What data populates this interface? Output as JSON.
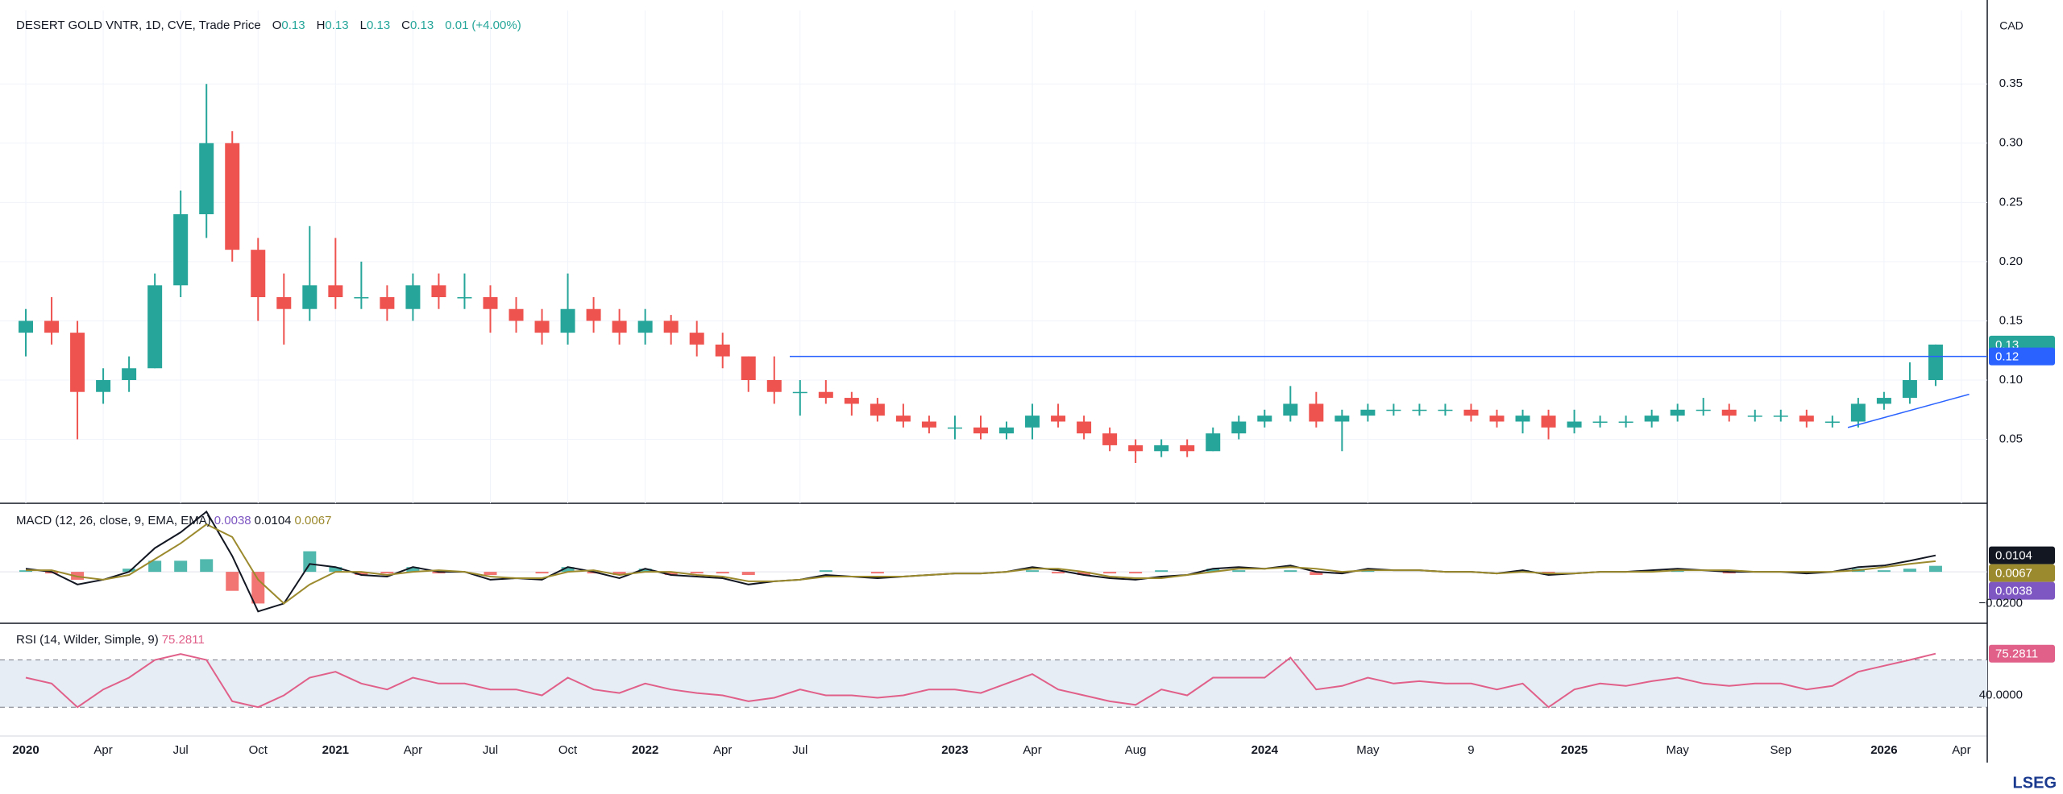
{
  "chart_data": [
    {
      "type": "candlestick",
      "title": "DESERT GOLD VNTR, 1D, CVE, Trade Price",
      "header": {
        "o_label": "O",
        "open": 0.13,
        "h_label": "H",
        "high": 0.13,
        "l_label": "L",
        "low": 0.13,
        "c_label": "C",
        "close": 0.13,
        "change": 0.01,
        "change_pct": "(+4.00%)"
      },
      "currency": "CAD",
      "up_color": "#26a69a",
      "down_color": "#ef5350",
      "x": [
        0,
        1,
        2,
        3,
        4,
        5,
        6,
        7,
        8,
        9,
        10,
        11,
        12,
        13,
        14,
        15,
        16,
        17,
        18,
        19,
        20,
        21,
        22,
        23,
        24,
        25,
        26,
        27,
        28,
        29,
        30,
        31,
        32,
        33,
        34,
        35,
        36,
        37,
        38,
        39,
        40,
        41,
        42,
        43,
        44,
        45,
        46,
        47,
        48,
        49,
        50,
        51,
        52,
        53,
        54,
        55,
        56,
        57,
        58,
        59,
        60,
        61,
        62,
        63,
        64,
        65,
        66,
        67,
        68,
        69,
        70,
        71,
        72,
        73,
        74
      ],
      "open": [
        0.14,
        0.15,
        0.14,
        0.09,
        0.1,
        0.11,
        0.18,
        0.24,
        0.3,
        0.21,
        0.17,
        0.16,
        0.18,
        0.17,
        0.17,
        0.16,
        0.18,
        0.17,
        0.17,
        0.16,
        0.15,
        0.14,
        0.16,
        0.15,
        0.14,
        0.15,
        0.14,
        0.13,
        0.12,
        0.1,
        0.09,
        0.09,
        0.085,
        0.08,
        0.07,
        0.065,
        0.06,
        0.06,
        0.055,
        0.06,
        0.07,
        0.065,
        0.055,
        0.045,
        0.04,
        0.045,
        0.04,
        0.055,
        0.065,
        0.07,
        0.08,
        0.065,
        0.07,
        0.075,
        0.075,
        0.075,
        0.075,
        0.07,
        0.065,
        0.07,
        0.06,
        0.065,
        0.065,
        0.065,
        0.07,
        0.075,
        0.075,
        0.07,
        0.07,
        0.07,
        0.065,
        0.065,
        0.08,
        0.085,
        0.1
      ],
      "high": [
        0.16,
        0.17,
        0.15,
        0.11,
        0.12,
        0.19,
        0.26,
        0.35,
        0.31,
        0.22,
        0.19,
        0.23,
        0.22,
        0.2,
        0.18,
        0.19,
        0.19,
        0.19,
        0.18,
        0.17,
        0.16,
        0.19,
        0.17,
        0.16,
        0.16,
        0.155,
        0.15,
        0.14,
        0.12,
        0.12,
        0.1,
        0.1,
        0.09,
        0.085,
        0.08,
        0.07,
        0.07,
        0.07,
        0.065,
        0.08,
        0.08,
        0.07,
        0.06,
        0.05,
        0.05,
        0.05,
        0.06,
        0.07,
        0.075,
        0.095,
        0.09,
        0.075,
        0.08,
        0.08,
        0.08,
        0.08,
        0.08,
        0.075,
        0.075,
        0.075,
        0.075,
        0.07,
        0.07,
        0.075,
        0.08,
        0.085,
        0.08,
        0.075,
        0.075,
        0.075,
        0.07,
        0.085,
        0.09,
        0.115,
        0.13
      ],
      "low": [
        0.12,
        0.13,
        0.05,
        0.08,
        0.09,
        0.11,
        0.17,
        0.22,
        0.2,
        0.15,
        0.13,
        0.15,
        0.16,
        0.16,
        0.15,
        0.15,
        0.16,
        0.16,
        0.14,
        0.14,
        0.13,
        0.13,
        0.14,
        0.13,
        0.13,
        0.13,
        0.12,
        0.11,
        0.09,
        0.08,
        0.07,
        0.08,
        0.07,
        0.065,
        0.06,
        0.055,
        0.05,
        0.05,
        0.05,
        0.05,
        0.06,
        0.05,
        0.04,
        0.03,
        0.035,
        0.035,
        0.04,
        0.05,
        0.06,
        0.065,
        0.06,
        0.04,
        0.065,
        0.07,
        0.07,
        0.07,
        0.065,
        0.06,
        0.055,
        0.05,
        0.055,
        0.06,
        0.06,
        0.06,
        0.065,
        0.07,
        0.065,
        0.065,
        0.065,
        0.06,
        0.06,
        0.06,
        0.075,
        0.08,
        0.095
      ],
      "close": [
        0.15,
        0.14,
        0.09,
        0.1,
        0.11,
        0.18,
        0.24,
        0.3,
        0.21,
        0.17,
        0.16,
        0.18,
        0.17,
        0.17,
        0.16,
        0.18,
        0.17,
        0.17,
        0.16,
        0.15,
        0.14,
        0.16,
        0.15,
        0.14,
        0.15,
        0.14,
        0.13,
        0.12,
        0.1,
        0.09,
        0.09,
        0.085,
        0.08,
        0.07,
        0.065,
        0.06,
        0.06,
        0.055,
        0.06,
        0.07,
        0.065,
        0.055,
        0.045,
        0.04,
        0.045,
        0.04,
        0.055,
        0.065,
        0.07,
        0.08,
        0.065,
        0.07,
        0.075,
        0.075,
        0.075,
        0.075,
        0.07,
        0.065,
        0.07,
        0.06,
        0.065,
        0.065,
        0.065,
        0.07,
        0.075,
        0.075,
        0.07,
        0.07,
        0.07,
        0.065,
        0.065,
        0.08,
        0.085,
        0.1,
        0.13
      ],
      "xlim": [
        -1,
        76
      ],
      "xticks": [
        {
          "value": 0,
          "label": "2020"
        },
        {
          "value": 3,
          "label": "Apr"
        },
        {
          "value": 6,
          "label": "Jul"
        },
        {
          "value": 9,
          "label": "Oct"
        },
        {
          "value": 12,
          "label": "2021"
        },
        {
          "value": 15,
          "label": "Apr"
        },
        {
          "value": 18,
          "label": "Jul"
        },
        {
          "value": 21,
          "label": "Oct"
        },
        {
          "value": 24,
          "label": "2022"
        },
        {
          "value": 27,
          "label": "Apr"
        },
        {
          "value": 30,
          "label": "Jul"
        },
        {
          "value": 36,
          "label": "2023"
        },
        {
          "value": 39,
          "label": "Apr"
        },
        {
          "value": 43,
          "label": "Aug"
        },
        {
          "value": 48,
          "label": "2024"
        },
        {
          "value": 52,
          "label": "May"
        },
        {
          "value": 56,
          "label": "9"
        },
        {
          "value": 60,
          "label": "2025"
        },
        {
          "value": 64,
          "label": "May"
        },
        {
          "value": 68,
          "label": "Sep"
        },
        {
          "value": 72,
          "label": "2026"
        },
        {
          "value": 75,
          "label": "Apr"
        }
      ],
      "ylim": [
        -0.004,
        0.412
      ],
      "yticks": [
        0.05,
        {
          "value": 0.1,
          "label": "0.10"
        },
        0.15,
        {
          "value": 0.2,
          "label": "0.20"
        },
        0.25,
        {
          "value": 0.3,
          "label": "0.30"
        },
        0.35
      ],
      "grid": true,
      "hline": {
        "value": 0.12,
        "x_start": 29.6,
        "color": "#2962ff"
      },
      "trendline": {
        "x": [
          70.6,
          75.3
        ],
        "y": [
          0.06,
          0.088
        ],
        "color": "#2962ff"
      }
    },
    {
      "type": "macd",
      "title": "MACD (12, 26, close, 9, EMA, EMA)",
      "series": [
        {
          "kind": "histogram",
          "color": "#7e57c2",
          "up_color": "#26a69a",
          "down_color": "#ef5350",
          "values": [
            0.001,
            -0.001,
            -0.005,
            0,
            0.002,
            0.007,
            0.007,
            0.008,
            -0.012,
            -0.02,
            0,
            0.013,
            0.003,
            -0.002,
            -0.001,
            0.003,
            -0.001,
            0,
            -0.002,
            0,
            -0.001,
            0.003,
            -0.001,
            -0.002,
            0.002,
            -0.002,
            -0.001,
            -0.001,
            -0.002,
            0,
            0,
            0.001,
            0,
            -0.001,
            0,
            0,
            0,
            0,
            0,
            0.001,
            -0.001,
            -0.002,
            -0.001,
            -0.001,
            0.001,
            0,
            0.002,
            0.001,
            0,
            0.001,
            -0.002,
            -0.001,
            0.001,
            0,
            0,
            0,
            0,
            0,
            0.001,
            -0.001,
            0,
            0,
            0,
            0.001,
            0.001,
            0,
            -0.001,
            0,
            0,
            -0.001,
            0,
            0.002,
            0.001,
            0.002,
            0.0038
          ]
        },
        {
          "kind": "line",
          "color": "#131722",
          "values": [
            0.002,
            0,
            -0.008,
            -0.005,
            0,
            0.015,
            0.025,
            0.038,
            0.01,
            -0.025,
            -0.02,
            0.005,
            0.003,
            -0.002,
            -0.003,
            0.003,
            0,
            0,
            -0.005,
            -0.004,
            -0.005,
            0.003,
            0,
            -0.004,
            0.002,
            -0.002,
            -0.003,
            -0.004,
            -0.008,
            -0.006,
            -0.005,
            -0.002,
            -0.003,
            -0.004,
            -0.003,
            -0.002,
            -0.001,
            -0.001,
            0,
            0.003,
            0.001,
            -0.002,
            -0.004,
            -0.005,
            -0.003,
            -0.002,
            0.002,
            0.003,
            0.002,
            0.004,
            0,
            -0.001,
            0.002,
            0.001,
            0.001,
            0,
            0,
            -0.001,
            0.001,
            -0.002,
            -0.001,
            0,
            0,
            0.001,
            0.002,
            0.001,
            0,
            0,
            0,
            -0.001,
            0,
            0.003,
            0.004,
            0.007,
            0.0104
          ]
        },
        {
          "kind": "line",
          "color": "#9c8a2e",
          "values": [
            0.001,
            0.001,
            -0.003,
            -0.005,
            -0.002,
            0.008,
            0.018,
            0.03,
            0.022,
            -0.005,
            -0.02,
            -0.008,
            0,
            0,
            -0.002,
            0,
            0.001,
            0,
            -0.003,
            -0.004,
            -0.004,
            0,
            0.001,
            -0.002,
            0,
            0,
            -0.002,
            -0.003,
            -0.006,
            -0.006,
            -0.005,
            -0.003,
            -0.003,
            -0.003,
            -0.003,
            -0.002,
            -0.001,
            -0.001,
            0,
            0.002,
            0.002,
            0,
            -0.003,
            -0.004,
            -0.004,
            -0.002,
            0,
            0.002,
            0.002,
            0.003,
            0.002,
            0,
            0.001,
            0.001,
            0.001,
            0,
            0,
            -0.001,
            0,
            -0.001,
            -0.001,
            0,
            0,
            0,
            0.001,
            0.001,
            0.001,
            0,
            0,
            0,
            0,
            0.001,
            0.003,
            0.005,
            0.0067
          ]
        }
      ],
      "ylim": [
        -0.0325,
        0.0433
      ],
      "yticks": [
        {
          "value": -0.02,
          "label": "−0.0200"
        }
      ]
    },
    {
      "type": "line",
      "title": "RSI (14, Wilder, Simple, 9)",
      "color": "#e0608a",
      "values": [
        55,
        50,
        30,
        45,
        55,
        70,
        75,
        70,
        35,
        30,
        40,
        55,
        60,
        50,
        45,
        55,
        50,
        50,
        45,
        45,
        40,
        55,
        45,
        42,
        50,
        45,
        42,
        40,
        35,
        38,
        45,
        40,
        40,
        38,
        40,
        45,
        45,
        42,
        50,
        58,
        45,
        40,
        35,
        32,
        45,
        40,
        55,
        55,
        55,
        72,
        45,
        48,
        55,
        50,
        52,
        50,
        50,
        45,
        50,
        30,
        45,
        50,
        48,
        52,
        55,
        50,
        48,
        50,
        50,
        45,
        48,
        60,
        65,
        70,
        75.2811
      ],
      "ylim": [
        5.6,
        101
      ],
      "yticks": [
        {
          "value": 40,
          "label": "40.0000"
        }
      ],
      "bands": [
        30,
        70
      ],
      "band_color": "#e6edf4"
    }
  ],
  "logo": "LSEG"
}
